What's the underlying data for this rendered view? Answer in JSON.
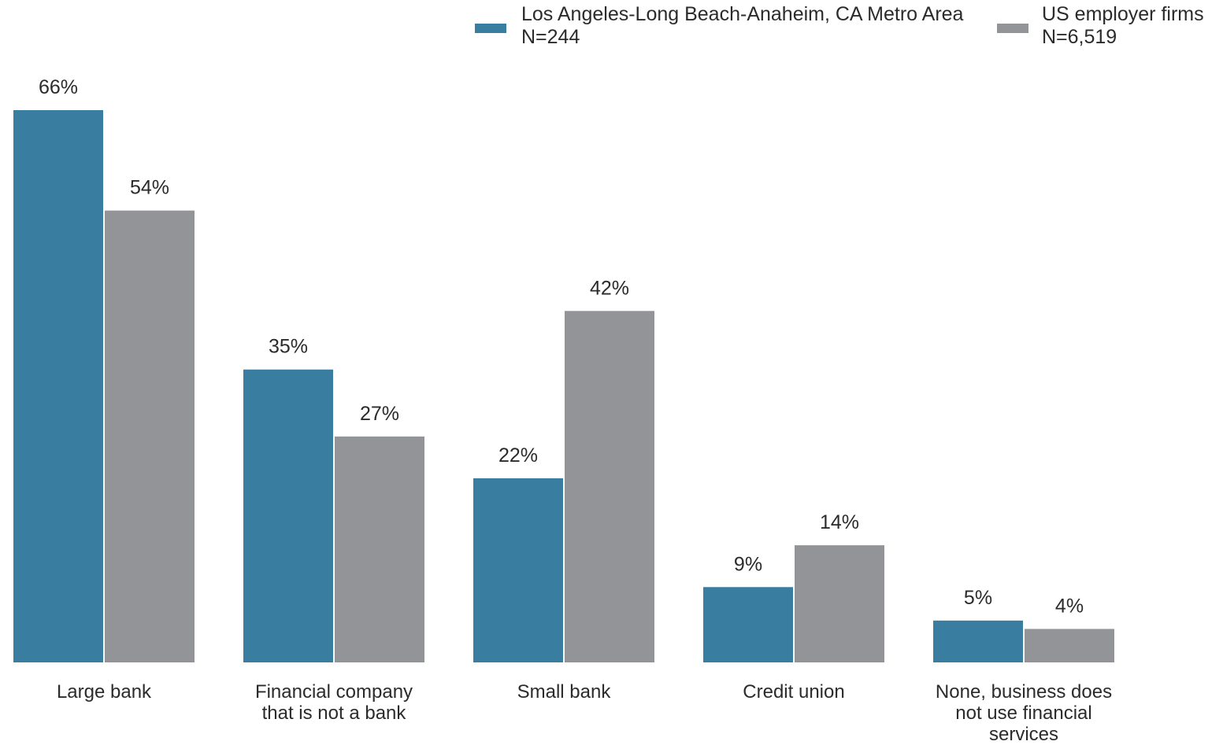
{
  "chart_data": {
    "type": "bar",
    "categories": [
      "Large bank",
      "Financial company that is not a bank",
      "Small bank",
      "Credit union",
      "None, business does not use financial services"
    ],
    "category_lines": [
      [
        "Large bank"
      ],
      [
        "Financial company",
        "that is not a bank"
      ],
      [
        "Small bank"
      ],
      [
        "Credit union"
      ],
      [
        "None, business does",
        "not use financial",
        "services"
      ]
    ],
    "series": [
      {
        "name": "Los Angeles-Long Beach-Anaheim, CA Metro Area",
        "sample": "N=244",
        "color": "#397ea0",
        "values": [
          66,
          35,
          22,
          9,
          5
        ],
        "labels": [
          "66%",
          "35%",
          "22%",
          "9%",
          "5%"
        ]
      },
      {
        "name": "US employer firms",
        "sample": "N=6,519",
        "color": "#939497",
        "values": [
          54,
          27,
          42,
          14,
          4
        ],
        "labels": [
          "54%",
          "27%",
          "42%",
          "14%",
          "4%"
        ]
      }
    ],
    "value_unit": "%",
    "ylim": [
      0,
      66
    ],
    "grid": false,
    "legend_position": "top-right",
    "title": "",
    "xlabel": "",
    "ylabel": ""
  }
}
